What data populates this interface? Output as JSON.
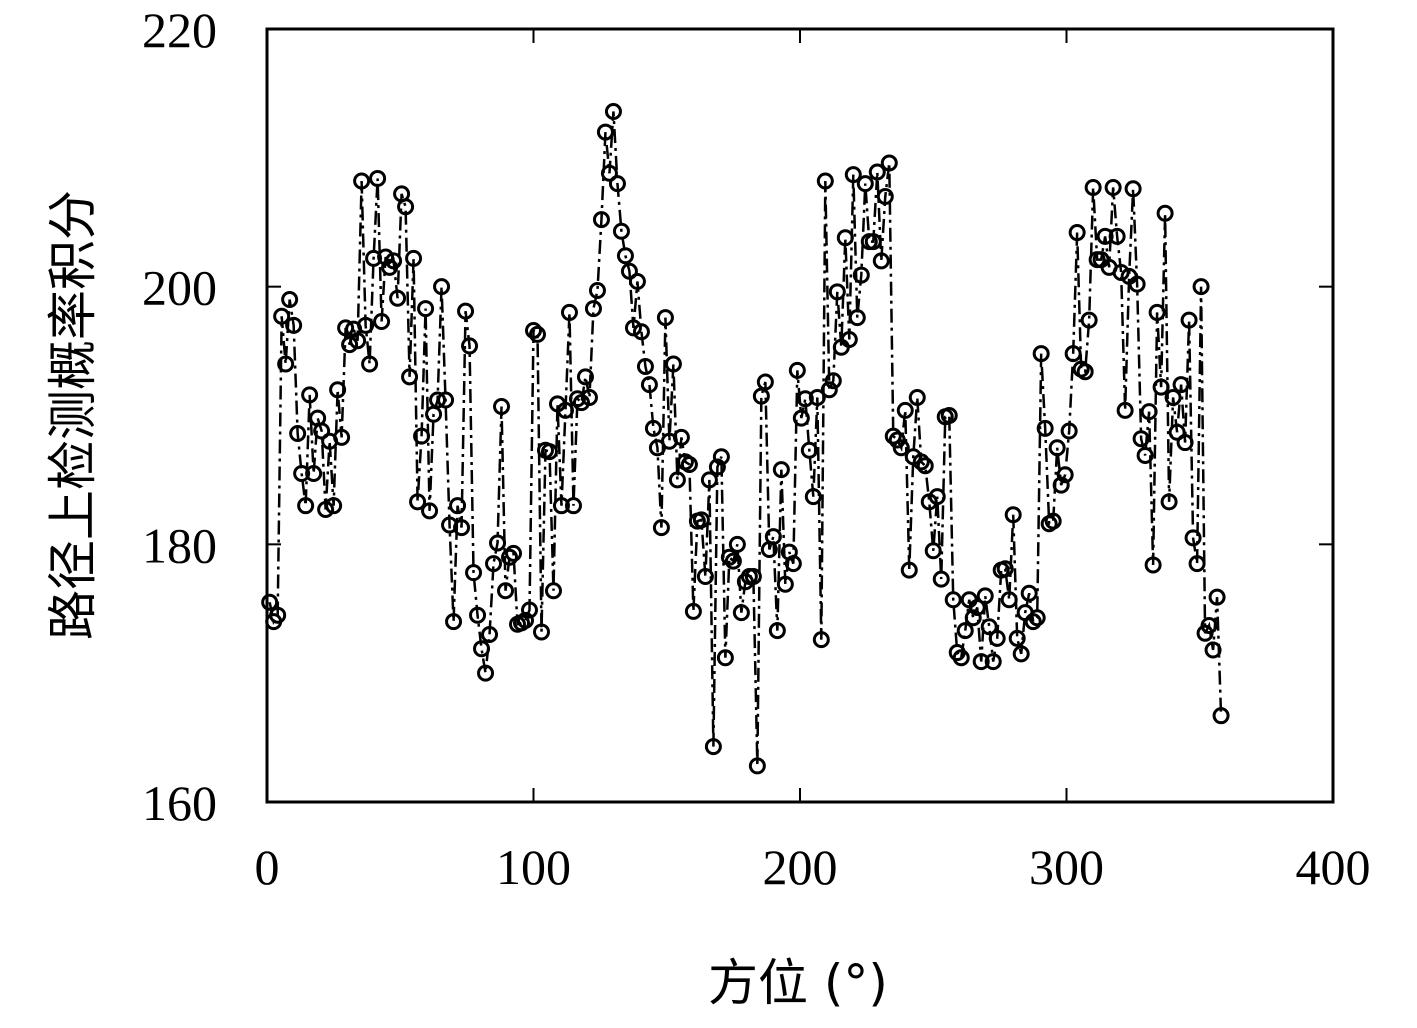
{
  "chart_data": {
    "type": "line",
    "xlabel": "方位 (°)",
    "ylabel": "路径上检测概率积分",
    "xlim": [
      0,
      400
    ],
    "ylim": [
      160,
      220
    ],
    "xticks": [
      0,
      100,
      200,
      300,
      400
    ],
    "yticks": [
      160,
      180,
      200,
      220
    ],
    "grid": false,
    "x": [
      1,
      2.5,
      4,
      5.5,
      7,
      8.5,
      10,
      11.5,
      13,
      14.5,
      16,
      17.5,
      19,
      20.5,
      22,
      23.5,
      25,
      26.5,
      28,
      29.5,
      31,
      32.5,
      34,
      35.5,
      37,
      38.5,
      40,
      41.5,
      43,
      44.5,
      46,
      47.5,
      49,
      50.5,
      52,
      53.5,
      55,
      56.5,
      58,
      59.5,
      61,
      62.5,
      64,
      65.5,
      67,
      68.5,
      70,
      71.5,
      73,
      74.5,
      76,
      77.5,
      79,
      80.5,
      82,
      83.5,
      85,
      86.5,
      88,
      89.5,
      91,
      92.5,
      94,
      95.5,
      97,
      98.5,
      100,
      101.5,
      103,
      104.5,
      106,
      107.5,
      109,
      110.5,
      112,
      113.5,
      115,
      116.5,
      118,
      119.5,
      121,
      122.5,
      124,
      125.5,
      127,
      128.5,
      130,
      131.5,
      133,
      134.5,
      136,
      137.5,
      139,
      140.5,
      142,
      143.5,
      145,
      146.5,
      148,
      149.5,
      151,
      152.5,
      154,
      155.5,
      157,
      158.5,
      160,
      161.5,
      163,
      164.5,
      166,
      167.5,
      169,
      170.5,
      172,
      173.5,
      175,
      176.5,
      178,
      179.5,
      181,
      182.5,
      184,
      185.5,
      187,
      188.5,
      190,
      191.5,
      193,
      194.5,
      196,
      197.5,
      199,
      200.5,
      202,
      203.5,
      205,
      206.5,
      208,
      209.5,
      211,
      212.5,
      214,
      215.5,
      217,
      218.5,
      220,
      221.5,
      223,
      224.5,
      226,
      227.5,
      229,
      230.5,
      232,
      233.5,
      235,
      236.5,
      238,
      239.5,
      241,
      242.5,
      244,
      245.5,
      247,
      248.5,
      250,
      251.5,
      253,
      254.5,
      256,
      257.5,
      259,
      260.5,
      262,
      263.5,
      265,
      266.5,
      268,
      269.5,
      271,
      272.5,
      274,
      275.5,
      277,
      278.5,
      280,
      281.5,
      283,
      284.5,
      286,
      287.5,
      289,
      290.5,
      292,
      293.5,
      295,
      296.5,
      298,
      299.5,
      301,
      302.5,
      304,
      305.5,
      307,
      308.5,
      310,
      311.5,
      313,
      314.5,
      316,
      317.5,
      319,
      320.5,
      322,
      323.5,
      325,
      326.5,
      328,
      329.5,
      331,
      332.5,
      334,
      335.5,
      337,
      338.5,
      340,
      341.5,
      343,
      344.5,
      346,
      347.5,
      349,
      350.5,
      352,
      353.5,
      355,
      356.5,
      358
    ],
    "series": [
      {
        "color": "#000000",
        "values": [
          175.5,
          174,
          174.5,
          197.7,
          194,
          199,
          197,
          188.6,
          185.5,
          183,
          191.6,
          185.5,
          189.8,
          188.8,
          182.7,
          188,
          183,
          192,
          188.3,
          196.8,
          195.5,
          196.7,
          195.8,
          208.2,
          197,
          194,
          202.2,
          208.4,
          197.3,
          202.3,
          201.5,
          202,
          199.1,
          207.2,
          206.2,
          193,
          202.2,
          183.3,
          188.4,
          198.3,
          182.6,
          190.1,
          191.2,
          200,
          191.2,
          181.5,
          174,
          183,
          181.3,
          198.1,
          195.4,
          177.8,
          174.5,
          171.9,
          170,
          173,
          178.5,
          180.1,
          190.7,
          176.4,
          179,
          179.3,
          173.8,
          173.9,
          174.1,
          174.9,
          196.6,
          196.3,
          173.2,
          187.3,
          187.2,
          176.4,
          190.9,
          183,
          190.4,
          198,
          183,
          191.3,
          191,
          193,
          191.4,
          198.3,
          199.7,
          205.2,
          212,
          208.8,
          213.6,
          208,
          204.3,
          202.4,
          201.2,
          196.8,
          200.4,
          196.5,
          193.8,
          192.4,
          189,
          187.5,
          181.3,
          197.6,
          188,
          194,
          185,
          188.3,
          186.4,
          186.2,
          174.8,
          181.8,
          181.9,
          177.5,
          185,
          164.3,
          186,
          186.8,
          171.2,
          179,
          178.7,
          180,
          174.7,
          177.1,
          177.5,
          177.5,
          162.8,
          191.5,
          192.6,
          179.6,
          180.6,
          173.3,
          185.8,
          176.9,
          179.4,
          178.5,
          193.5,
          189.8,
          191.3,
          187.3,
          183.7,
          191.4,
          172.6,
          208.2,
          192,
          192.7,
          199.6,
          195.3,
          203.8,
          195.9,
          208.7,
          197.6,
          200.9,
          208,
          203.5,
          203.5,
          208.9,
          202,
          207,
          209.6,
          188.4,
          188.1,
          187.5,
          190.4,
          178,
          186.8,
          191.4,
          186.4,
          186.1,
          183.3,
          179.5,
          183.7,
          177.3,
          189.9,
          190,
          175.7,
          171.6,
          171.2,
          173.3,
          175.7,
          174.3,
          175.1,
          170.9,
          176,
          173.6,
          170.9,
          172.7,
          178,
          178.1,
          175.7,
          182.3,
          172.7,
          171.5,
          174.7,
          176.2,
          174,
          174.3,
          194.8,
          189,
          181.6,
          181.8,
          187.5,
          184.6,
          185.4,
          188.8,
          194.8,
          204.2,
          193.6,
          193.4,
          197.4,
          207.7,
          202.1,
          202.1,
          203.9,
          201.5,
          207.7,
          203.9,
          201.1,
          190.4,
          200.8,
          207.6,
          200.2,
          188.2,
          186.9,
          190.3,
          178.4,
          198,
          192.2,
          205.7,
          183.3,
          191.4,
          188.7,
          192.4,
          187.9,
          197.4,
          180.5,
          178.5,
          200,
          173.1,
          173.7,
          171.8,
          175.9,
          166.7
        ]
      }
    ]
  }
}
